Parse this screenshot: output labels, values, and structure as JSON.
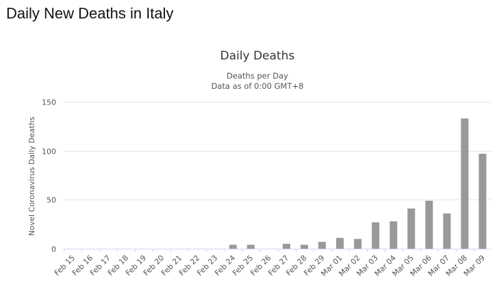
{
  "page": {
    "heading": "Daily New Deaths in Italy"
  },
  "colors": {
    "bar": "#999999",
    "grid": "#e6e6e6",
    "axis_line": "#ccd6eb",
    "text": "#333333",
    "tick_text": "#555555"
  },
  "chart_data": {
    "type": "bar",
    "title": "Daily Deaths",
    "subtitle_lines": [
      "Deaths per Day",
      "Data as of 0:00 GMT+8"
    ],
    "xlabel": "",
    "ylabel": "Novel Coronavirus Daily Deaths",
    "ylim": [
      0,
      150
    ],
    "yticks": [
      0,
      50,
      100,
      150
    ],
    "grid": true,
    "legend": false,
    "categories": [
      "Feb 15",
      "Feb 16",
      "Feb 17",
      "Feb 18",
      "Feb 19",
      "Feb 20",
      "Feb 21",
      "Feb 22",
      "Feb 23",
      "Feb 24",
      "Feb 25",
      "Feb 26",
      "Feb 27",
      "Feb 28",
      "Feb 29",
      "Mar 01",
      "Mar 02",
      "Mar 03",
      "Mar 04",
      "Mar 05",
      "Mar 06",
      "Mar 07",
      "Mar 08",
      "Mar 09"
    ],
    "values": [
      0,
      0,
      0,
      0,
      0,
      0,
      0,
      0,
      0,
      4,
      4,
      0,
      5,
      4,
      7,
      11,
      10,
      27,
      28,
      41,
      49,
      36,
      133,
      97
    ]
  }
}
